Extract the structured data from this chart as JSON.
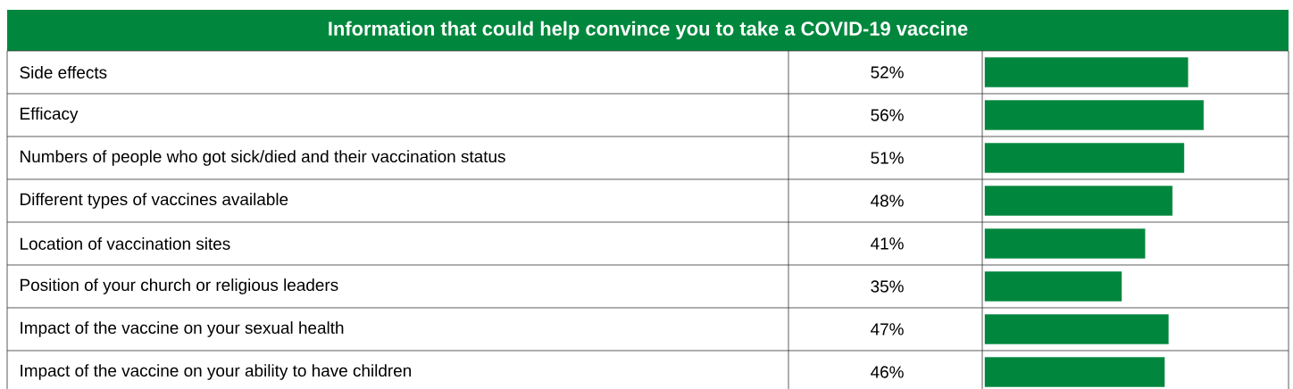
{
  "chart_data": {
    "type": "bar",
    "orientation": "horizontal",
    "title": "Information that could help convince you to take a COVID-19 vaccine",
    "categories": [
      "Side effects",
      "Efficacy",
      "Numbers of people who got sick/died and their vaccination status",
      "Different types of vaccines available",
      "Location of vaccination sites",
      "Position of your church or religious leaders",
      "Impact of the vaccine on your sexual health",
      "Impact of the vaccine on your ability to have children"
    ],
    "values": [
      52,
      56,
      51,
      48,
      41,
      35,
      47,
      46
    ],
    "value_labels": [
      "52%",
      "56%",
      "51%",
      "48%",
      "41%",
      "35%",
      "47%",
      "46%"
    ],
    "color": "#00873d"
  }
}
